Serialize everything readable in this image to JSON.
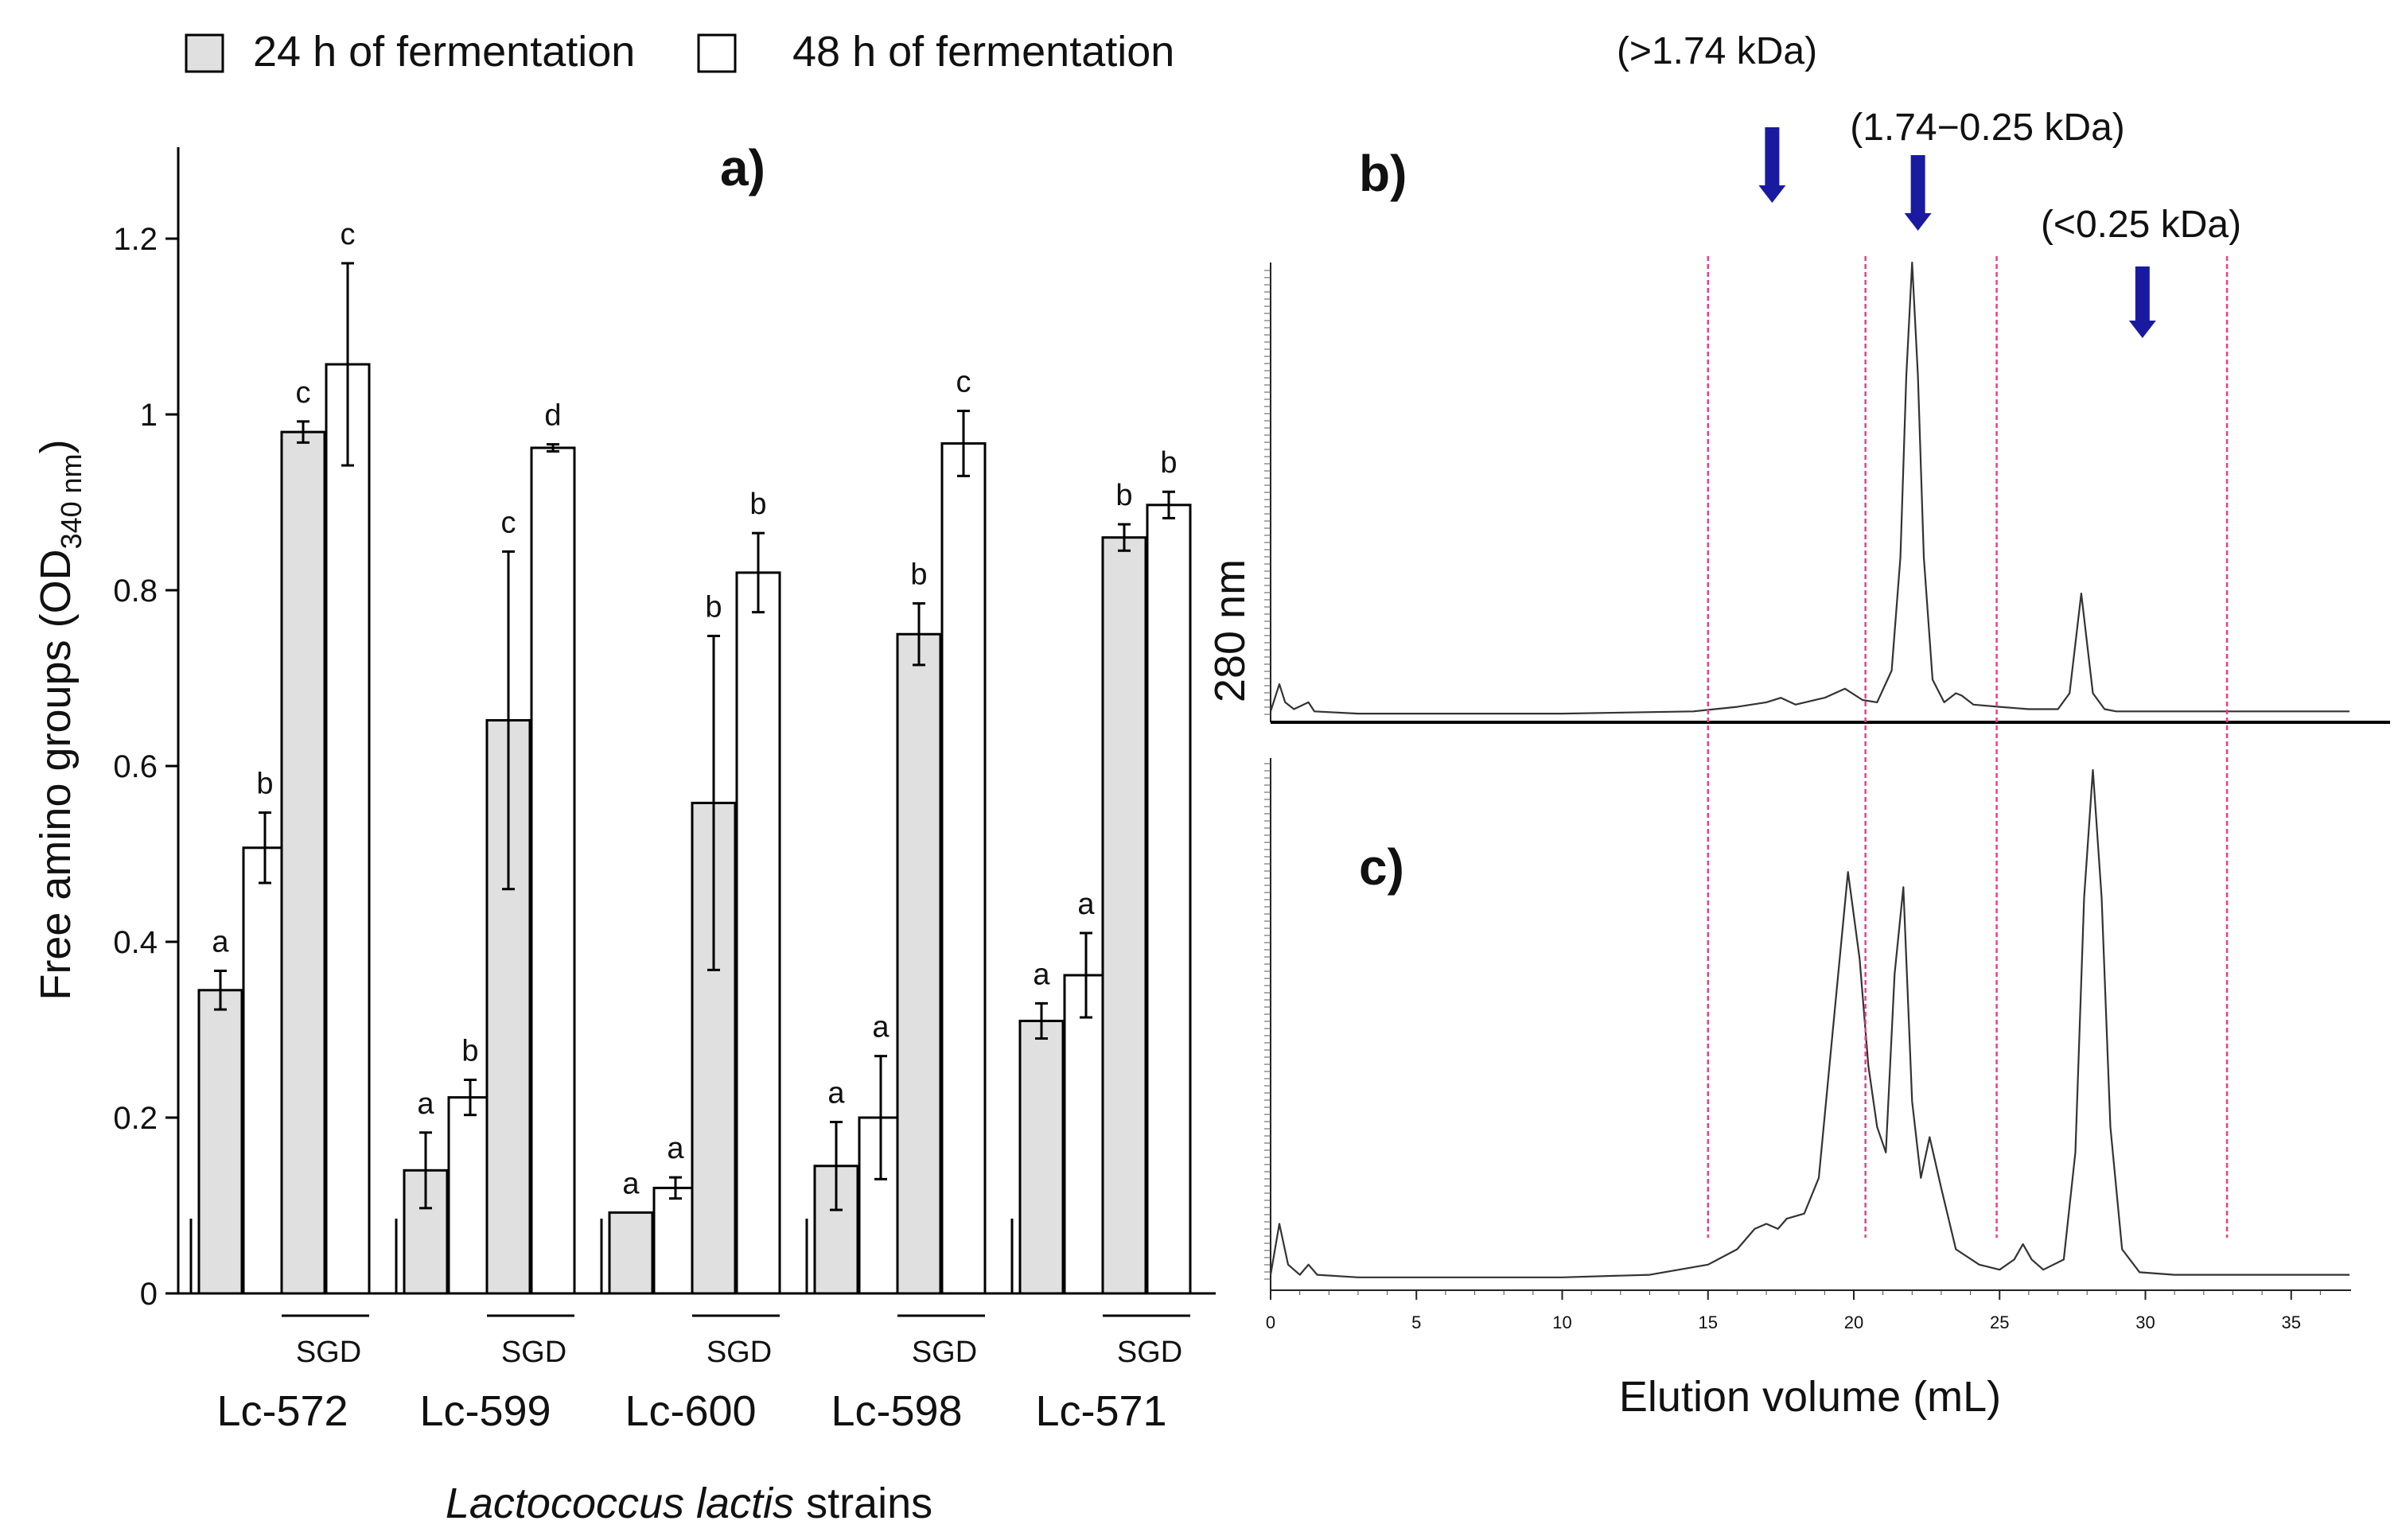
{
  "chart_data": [
    {
      "type": "bar",
      "panel_label": "a)",
      "legend": [
        {
          "label": "24 h of fermentation",
          "color": "#e0e0e0"
        },
        {
          "label": "48 h of fermentation",
          "color": "#ffffff"
        }
      ],
      "ylabel_main": "Free amino groups (OD",
      "ylabel_sub": "340 nm",
      "ylabel_close": ")",
      "xlabel_italic": "Lactococcus lactis",
      "xlabel_rest": " strains",
      "ylim": [
        0,
        1.3
      ],
      "yticks": [
        "0",
        "0.2",
        "0.4",
        "0.6",
        "0.8",
        "1",
        "1.2"
      ],
      "ytick_values": [
        0,
        0.2,
        0.4,
        0.6,
        0.8,
        1.0,
        1.2
      ],
      "sgd_label": "SGD",
      "groups": [
        {
          "strain": "Lc-572",
          "bars": [
            {
              "value": 0.345,
              "err": 0.022,
              "letter": "a",
              "series": 0
            },
            {
              "value": 0.507,
              "err": 0.04,
              "letter": "b",
              "series": 1
            },
            {
              "value": 0.98,
              "err": 0.012,
              "letter": "c",
              "series": 0
            },
            {
              "value": 1.057,
              "err": 0.115,
              "letter": "c",
              "series": 1
            }
          ]
        },
        {
          "strain": "Lc-599",
          "bars": [
            {
              "value": 0.14,
              "err": 0.043,
              "letter": "a",
              "series": 0
            },
            {
              "value": 0.223,
              "err": 0.02,
              "letter": "b",
              "series": 1
            },
            {
              "value": 0.652,
              "err": 0.192,
              "letter": "c",
              "series": 0
            },
            {
              "value": 0.962,
              "err": 0.004,
              "letter": "d",
              "series": 1
            }
          ]
        },
        {
          "strain": "Lc-600",
          "bars": [
            {
              "value": 0.092,
              "err": 0,
              "letter": "a",
              "series": 0
            },
            {
              "value": 0.12,
              "err": 0.012,
              "letter": "a",
              "series": 1
            },
            {
              "value": 0.558,
              "err": 0.19,
              "letter": "b",
              "series": 0
            },
            {
              "value": 0.82,
              "err": 0.045,
              "letter": "b",
              "series": 1
            }
          ]
        },
        {
          "strain": "Lc-598",
          "bars": [
            {
              "value": 0.145,
              "err": 0.05,
              "letter": "a",
              "series": 0
            },
            {
              "value": 0.2,
              "err": 0.07,
              "letter": "a",
              "series": 1
            },
            {
              "value": 0.75,
              "err": 0.035,
              "letter": "b",
              "series": 0
            },
            {
              "value": 0.967,
              "err": 0.037,
              "letter": "c",
              "series": 1
            }
          ]
        },
        {
          "strain": "Lc-571",
          "bars": [
            {
              "value": 0.31,
              "err": 0.02,
              "letter": "a",
              "series": 0
            },
            {
              "value": 0.362,
              "err": 0.048,
              "letter": "a",
              "series": 1
            },
            {
              "value": 0.86,
              "err": 0.015,
              "letter": "b",
              "series": 0
            },
            {
              "value": 0.897,
              "err": 0.015,
              "letter": "b",
              "series": 1
            }
          ]
        }
      ]
    },
    {
      "type": "line",
      "panels": [
        "b)",
        "c)"
      ],
      "ylabel": "280 nm",
      "xlabel": "Elution volume (mL)",
      "xlim": [
        0,
        37
      ],
      "xticks": [
        "0",
        "5",
        "10",
        "15",
        "20",
        "25",
        "30",
        "35"
      ],
      "xtick_values": [
        0,
        5,
        10,
        15,
        20,
        25,
        30,
        35
      ],
      "fraction_boundaries": [
        15,
        20.4,
        24.9,
        32.8
      ],
      "markers": [
        {
          "label": "(>1.74 kDa)",
          "x": 17.2
        },
        {
          "label": "(1.74−0.25 kDa)",
          "x": 22.2
        },
        {
          "label": "(<0.25 kDa)",
          "x": 29.9
        }
      ],
      "series": [
        {
          "name": "b)",
          "x": [
            0,
            0.3,
            0.5,
            0.8,
            1.3,
            1.5,
            3,
            10,
            14.5,
            16,
            17,
            17.5,
            18,
            19,
            19.7,
            20.3,
            20.8,
            21.3,
            21.6,
            21.8,
            22.0,
            22.2,
            22.4,
            22.7,
            23.1,
            23.5,
            23.7,
            24.1,
            25,
            26,
            27,
            27.4,
            27.8,
            28.2,
            28.6,
            29,
            30,
            35,
            37
          ],
          "y": [
            0.01,
            0.07,
            0.03,
            0.015,
            0.03,
            0.01,
            0.005,
            0.005,
            0.01,
            0.02,
            0.03,
            0.04,
            0.025,
            0.04,
            0.06,
            0.035,
            0.03,
            0.1,
            0.35,
            0.75,
            1.0,
            0.75,
            0.35,
            0.08,
            0.03,
            0.05,
            0.045,
            0.025,
            0.02,
            0.015,
            0.015,
            0.05,
            0.27,
            0.05,
            0.015,
            0.01,
            0.01,
            0.01,
            0.01
          ]
        },
        {
          "name": "c)",
          "x": [
            0,
            0.3,
            0.6,
            1.0,
            1.3,
            1.6,
            3,
            10,
            13,
            15,
            16,
            16.6,
            17.0,
            17.4,
            17.7,
            18.3,
            18.8,
            19.3,
            19.8,
            20.2,
            20.5,
            20.8,
            21.1,
            21.4,
            21.7,
            22.0,
            22.3,
            22.6,
            23.0,
            23.5,
            24.3,
            25.0,
            25.5,
            25.8,
            26.1,
            26.5,
            27.2,
            27.6,
            27.9,
            28.2,
            28.5,
            28.8,
            29.2,
            29.8,
            31,
            35,
            37
          ],
          "y": [
            0.01,
            0.11,
            0.03,
            0.01,
            0.03,
            0.01,
            0.005,
            0.005,
            0.01,
            0.03,
            0.06,
            0.1,
            0.11,
            0.1,
            0.12,
            0.13,
            0.2,
            0.5,
            0.8,
            0.63,
            0.42,
            0.3,
            0.25,
            0.6,
            0.77,
            0.35,
            0.2,
            0.28,
            0.18,
            0.06,
            0.03,
            0.02,
            0.04,
            0.07,
            0.04,
            0.02,
            0.04,
            0.25,
            0.75,
            1.0,
            0.75,
            0.3,
            0.06,
            0.015,
            0.01,
            0.01,
            0.01
          ]
        }
      ]
    }
  ]
}
